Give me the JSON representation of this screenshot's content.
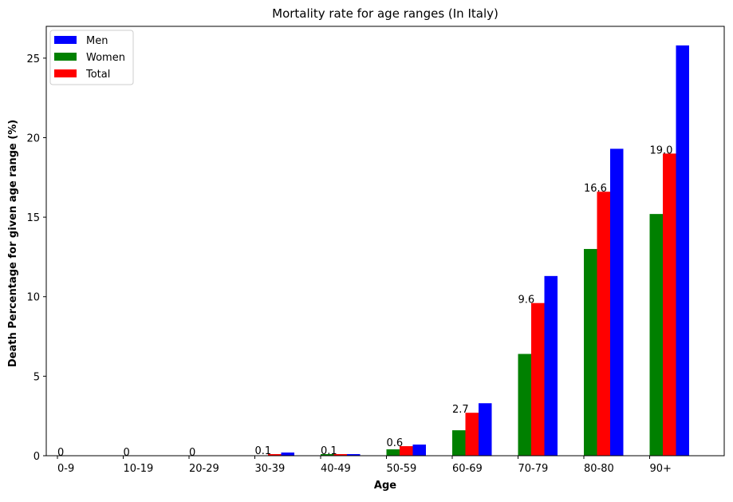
{
  "chart_data": {
    "type": "bar",
    "title": "Mortality rate for age ranges (In Italy)",
    "xlabel": "Age",
    "ylabel": "Death Percentage for given age range (%)",
    "categories": [
      "0-9",
      "10-19",
      "20-29",
      "30-39",
      "40-49",
      "50-59",
      "60-69",
      "70-79",
      "80-80",
      "90+"
    ],
    "series": [
      {
        "name": "Men",
        "color": "#0000ff",
        "values": [
          0,
          0,
          0,
          0.2,
          0.1,
          0.7,
          3.3,
          11.3,
          19.3,
          25.8
        ]
      },
      {
        "name": "Women",
        "color": "#008000",
        "values": [
          0,
          0,
          0,
          0,
          0.1,
          0.4,
          1.6,
          6.4,
          13.0,
          15.2
        ]
      },
      {
        "name": "Total",
        "color": "#ff0000",
        "values": [
          0,
          0,
          0,
          0.1,
          0.1,
          0.6,
          2.7,
          9.6,
          16.6,
          19.0
        ]
      }
    ],
    "data_labels": [
      "0",
      "0",
      "0",
      "0.1",
      "0.1",
      "0.6",
      "2.7",
      "9.6",
      "16.6",
      "19.0"
    ],
    "ylim": [
      0,
      27
    ],
    "yticks": [
      0,
      5,
      10,
      15,
      20,
      25
    ],
    "grid": false,
    "legend_position": "top-left"
  }
}
